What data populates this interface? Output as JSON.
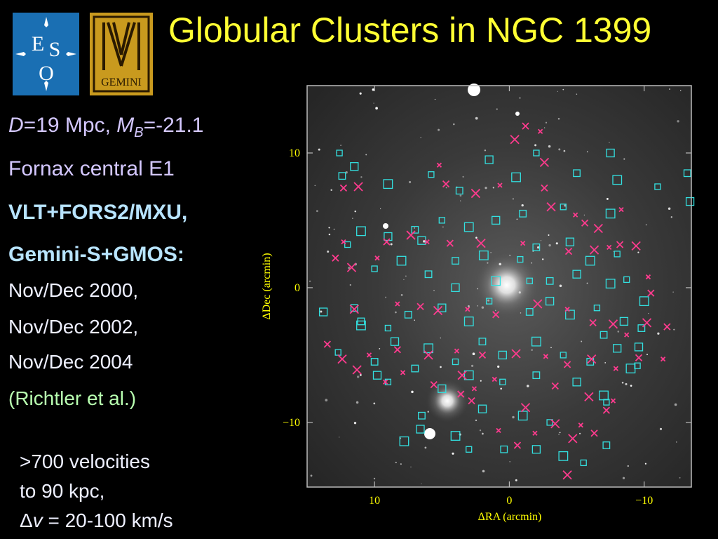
{
  "title": "Globular Clusters in NGC 1399",
  "logos": {
    "eso": {
      "text": "ESO",
      "color": "#1a6fb3"
    },
    "gemini": {
      "text": "GEMINI",
      "color": "#c99a1e"
    }
  },
  "left_text": {
    "distance_D": "D",
    "distance_val": "=19 Mpc, ",
    "mag_M": "M",
    "mag_sub": "B",
    "mag_val": "=-21.1",
    "type": "Fornax central E1",
    "instrument1": "VLT+FORS2/MXU,",
    "instrument2": "Gemini-S+GMOS:",
    "date1": "Nov/Dec 2000,",
    "date2": "Nov/Dec 2002,",
    "date3": "Nov/Dec 2004",
    "reference": "(Richtler et al.)"
  },
  "bottom_text": {
    "line1": ">700 velocities",
    "line2": "to 90 kpc,",
    "delta": "Δ",
    "v": "v",
    "range": " = 20-100 km/s"
  },
  "chart_data": {
    "type": "scatter",
    "xlabel": "ΔRA (arcmin)",
    "ylabel": "ΔDec (arcmin)",
    "xlim": [
      15,
      -13.5
    ],
    "ylim": [
      -14.8,
      15
    ],
    "xticks": [
      "10",
      "0",
      "−10"
    ],
    "yticks": [
      "10",
      "0",
      "−10"
    ],
    "series": [
      {
        "marker": "square",
        "color": "#33e0e0",
        "points": [
          [
            12.6,
            10
          ],
          [
            12.4,
            8.3
          ],
          [
            11.5,
            9
          ],
          [
            9,
            7.7
          ],
          [
            5.8,
            8.4
          ],
          [
            3.7,
            7.2
          ],
          [
            1.5,
            9.5
          ],
          [
            -0.5,
            8.2
          ],
          [
            -2,
            10
          ],
          [
            -5,
            8.5
          ],
          [
            -7.5,
            10
          ],
          [
            -8,
            8
          ],
          [
            -11,
            7.5
          ],
          [
            -13.2,
            8.5
          ],
          [
            -13.4,
            6.4
          ],
          [
            -7.5,
            5.5
          ],
          [
            -4,
            6
          ],
          [
            -1,
            5.5
          ],
          [
            1,
            5
          ],
          [
            3,
            4.5
          ],
          [
            5,
            5
          ],
          [
            7,
            4.3
          ],
          [
            9,
            3.8
          ],
          [
            11,
            4.2
          ],
          [
            12,
            3.2
          ],
          [
            -2,
            3
          ],
          [
            -4.5,
            3.4
          ],
          [
            -6,
            2
          ],
          [
            -8,
            2.5
          ],
          [
            4,
            2
          ],
          [
            6.5,
            3.5
          ],
          [
            8,
            2
          ],
          [
            10,
            1.4
          ],
          [
            6,
            1
          ],
          [
            4,
            0
          ],
          [
            1,
            0.5
          ],
          [
            -1.5,
            0.5
          ],
          [
            -3,
            0.5
          ],
          [
            -5,
            1
          ],
          [
            -7.5,
            0.3
          ],
          [
            -8.7,
            0.6
          ],
          [
            11.5,
            -1.5
          ],
          [
            13.8,
            -1.8
          ],
          [
            11,
            -2.8
          ],
          [
            9,
            -3
          ],
          [
            7.5,
            -2
          ],
          [
            5,
            -1.5
          ],
          [
            3,
            -2.5
          ],
          [
            1.5,
            -1
          ],
          [
            -1.5,
            -1.8
          ],
          [
            -3,
            -1
          ],
          [
            -4.5,
            -2
          ],
          [
            -6.5,
            -1.5
          ],
          [
            -7,
            -3.5
          ],
          [
            -8.5,
            -2.5
          ],
          [
            -10,
            -1
          ],
          [
            12.7,
            -4.8
          ],
          [
            10,
            -5.5
          ],
          [
            8.5,
            -4
          ],
          [
            6,
            -4.5
          ],
          [
            4,
            -5.5
          ],
          [
            2,
            -4
          ],
          [
            0.5,
            -5
          ],
          [
            -2,
            -4
          ],
          [
            -4,
            -5
          ],
          [
            -6,
            -5.5
          ],
          [
            -8,
            -4.5
          ],
          [
            -9,
            -6
          ],
          [
            9,
            -7
          ],
          [
            7,
            -6
          ],
          [
            5,
            -7.5
          ],
          [
            3,
            -6.5
          ],
          [
            0.5,
            -7
          ],
          [
            -2,
            -6.5
          ],
          [
            -5,
            -7
          ],
          [
            -7,
            -8
          ],
          [
            -7.2,
            -8.5
          ],
          [
            6.5,
            -9.5
          ],
          [
            6.6,
            -10.5
          ],
          [
            4,
            -11
          ],
          [
            3,
            -12
          ],
          [
            0.4,
            -12
          ],
          [
            -2,
            -12
          ],
          [
            -4,
            -12.5
          ],
          [
            -5.5,
            -13
          ],
          [
            -7.2,
            -11.7
          ],
          [
            2,
            -9
          ],
          [
            -1,
            -9.5
          ],
          [
            -3,
            -10
          ],
          [
            11,
            -2.5
          ],
          [
            9.8,
            -6.5
          ],
          [
            7.8,
            -11.4
          ],
          [
            -9.5,
            -5.8
          ],
          [
            -9.8,
            -3
          ],
          [
            -9.6,
            -4.4
          ],
          [
            1.9,
            2.4
          ],
          [
            -0.8,
            2.1
          ]
        ]
      },
      {
        "marker": "x",
        "color": "#ff3b8e",
        "points": [
          [
            -2.3,
            11.6
          ],
          [
            -1.2,
            12
          ],
          [
            -0.4,
            11
          ],
          [
            5.2,
            9.1
          ],
          [
            4.7,
            7.7
          ],
          [
            2.5,
            7
          ],
          [
            0.7,
            7.6
          ],
          [
            -2.6,
            7.4
          ],
          [
            -3.1,
            6
          ],
          [
            -4.9,
            5.4
          ],
          [
            -5.6,
            4.8
          ],
          [
            -6.6,
            4.4
          ],
          [
            -8.3,
            5.8
          ],
          [
            12.3,
            7.4
          ],
          [
            11.2,
            7.5
          ],
          [
            12.3,
            3.4
          ],
          [
            12.9,
            2.2
          ],
          [
            11.7,
            1.5
          ],
          [
            9.8,
            2.2
          ],
          [
            9.1,
            3.4
          ],
          [
            7.3,
            3.9
          ],
          [
            6.1,
            3.4
          ],
          [
            4.4,
            3.3
          ],
          [
            2.1,
            3.3
          ],
          [
            -1,
            3.3
          ],
          [
            -4.4,
            2.7
          ],
          [
            -6.3,
            2.8
          ],
          [
            -7.4,
            3
          ],
          [
            -8.2,
            3.2
          ],
          [
            -9.4,
            3.1
          ],
          [
            -10.3,
            0.8
          ],
          [
            -10.5,
            -0.4
          ],
          [
            11.5,
            -1.6
          ],
          [
            8.3,
            -1.2
          ],
          [
            6.6,
            -1.4
          ],
          [
            5.3,
            -1.7
          ],
          [
            3.1,
            -1.6
          ],
          [
            1,
            -2
          ],
          [
            -2.1,
            -1.2
          ],
          [
            -4.3,
            -1.6
          ],
          [
            -6.2,
            -2.6
          ],
          [
            -7.7,
            -2.7
          ],
          [
            -8.7,
            -3.5
          ],
          [
            13.5,
            -4.2
          ],
          [
            12.4,
            -5.3
          ],
          [
            10.4,
            -5
          ],
          [
            8.3,
            -4.6
          ],
          [
            6,
            -5
          ],
          [
            3.9,
            -4.7
          ],
          [
            2,
            -5
          ],
          [
            -0.5,
            -4.9
          ],
          [
            -2.7,
            -5.1
          ],
          [
            -4.3,
            -5.7
          ],
          [
            -6.1,
            -5.3
          ],
          [
            -7.9,
            -6
          ],
          [
            -9.6,
            -5.2
          ],
          [
            11.3,
            -6.1
          ],
          [
            9.2,
            -7
          ],
          [
            5.6,
            -7.2
          ],
          [
            3.5,
            -6.5
          ],
          [
            1.1,
            -6.8
          ],
          [
            -3.4,
            -7.3
          ],
          [
            -5.9,
            -8.1
          ],
          [
            -7.7,
            -8.4
          ],
          [
            -7.2,
            -9.1
          ],
          [
            -3.4,
            -10.1
          ],
          [
            -5.3,
            -10.2
          ],
          [
            -6.3,
            -10.8
          ],
          [
            -4.7,
            -11.2
          ],
          [
            -1.9,
            -10.8
          ],
          [
            -0.6,
            -11.7
          ],
          [
            -4.3,
            -13.9
          ],
          [
            2.6,
            -7.5
          ],
          [
            2.8,
            -8.4
          ],
          [
            -1.2,
            -8.9
          ],
          [
            0.8,
            -10.6
          ],
          [
            3.6,
            -7.9
          ],
          [
            -10.2,
            -2.6
          ],
          [
            -11.4,
            -5.3
          ],
          [
            -11.7,
            -2.9
          ],
          [
            -2.6,
            9.3
          ],
          [
            7.9,
            -6.3
          ]
        ]
      }
    ],
    "bright_galaxies": [
      [
        0.2,
        0.2
      ],
      [
        4.6,
        -8.4
      ]
    ]
  }
}
